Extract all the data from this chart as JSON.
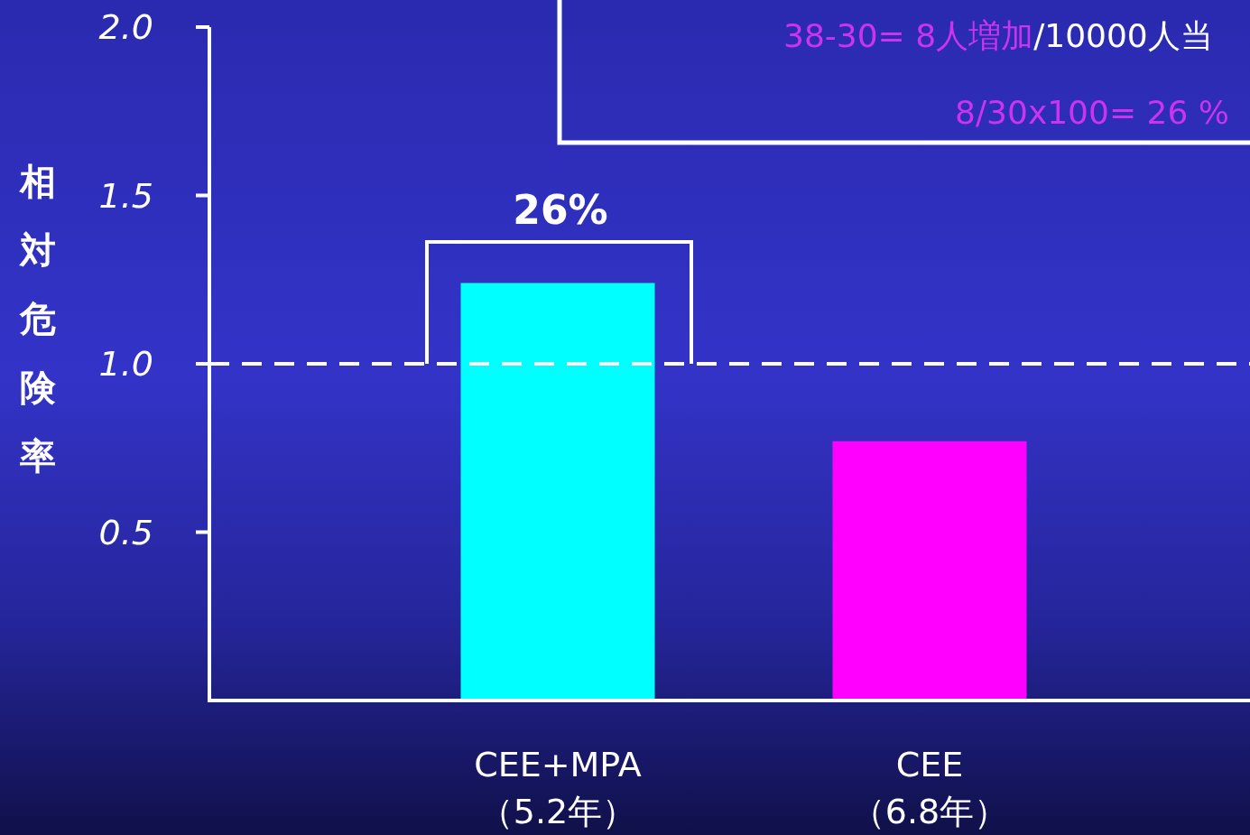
{
  "chart_data": {
    "type": "bar",
    "ylabel": "相対危険率",
    "categories": [
      "CEE+MPA\n（5.2年）",
      "CEE\n（6.8年）"
    ],
    "values": [
      1.24,
      0.77
    ],
    "colors": [
      "#00ffff",
      "#ff00ff"
    ],
    "ylim": [
      0,
      2.0
    ],
    "yticks": [
      0.5,
      {
        "value": 1,
        "label": "1.0"
      },
      1.5,
      {
        "value": 2,
        "label": "2.0"
      }
    ],
    "ref_lines": [
      {
        "axis": "y",
        "value": 1,
        "color": "#ffffff",
        "line_style": "dashed"
      }
    ],
    "annotations": [
      "26%",
      "38-30= 8人増加",
      "/10000人当",
      "8/30x100= 26 %"
    ],
    "grid": false
  }
}
